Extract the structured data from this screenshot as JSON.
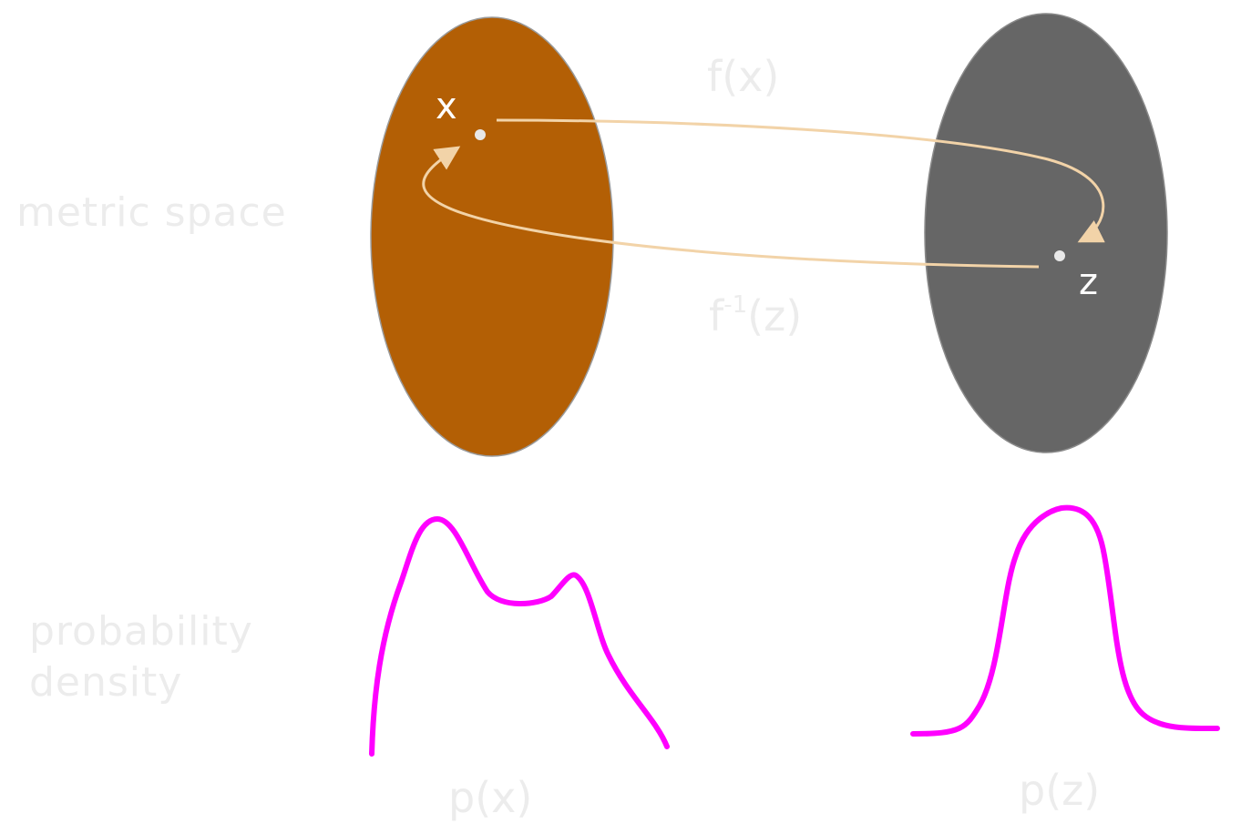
{
  "labels": {
    "metric_space": "metric space",
    "probability_density_line1": "probability",
    "probability_density_line2": "density",
    "forward_map": "f(x)",
    "inverse_map_base": "f",
    "inverse_map_sup": "-1",
    "inverse_map_arg": "(z)",
    "point_x": "x",
    "point_z": "z",
    "density_x": "p(x)",
    "density_z": "p(z)"
  },
  "colors": {
    "data_space": "#b35f05",
    "latent_space": "#666666",
    "arrow": "#f2d3a8",
    "density_curve": "#ff00ff",
    "faint_text": "#ececec",
    "point": "#e8e8e8",
    "point_label": "#ffffff"
  }
}
